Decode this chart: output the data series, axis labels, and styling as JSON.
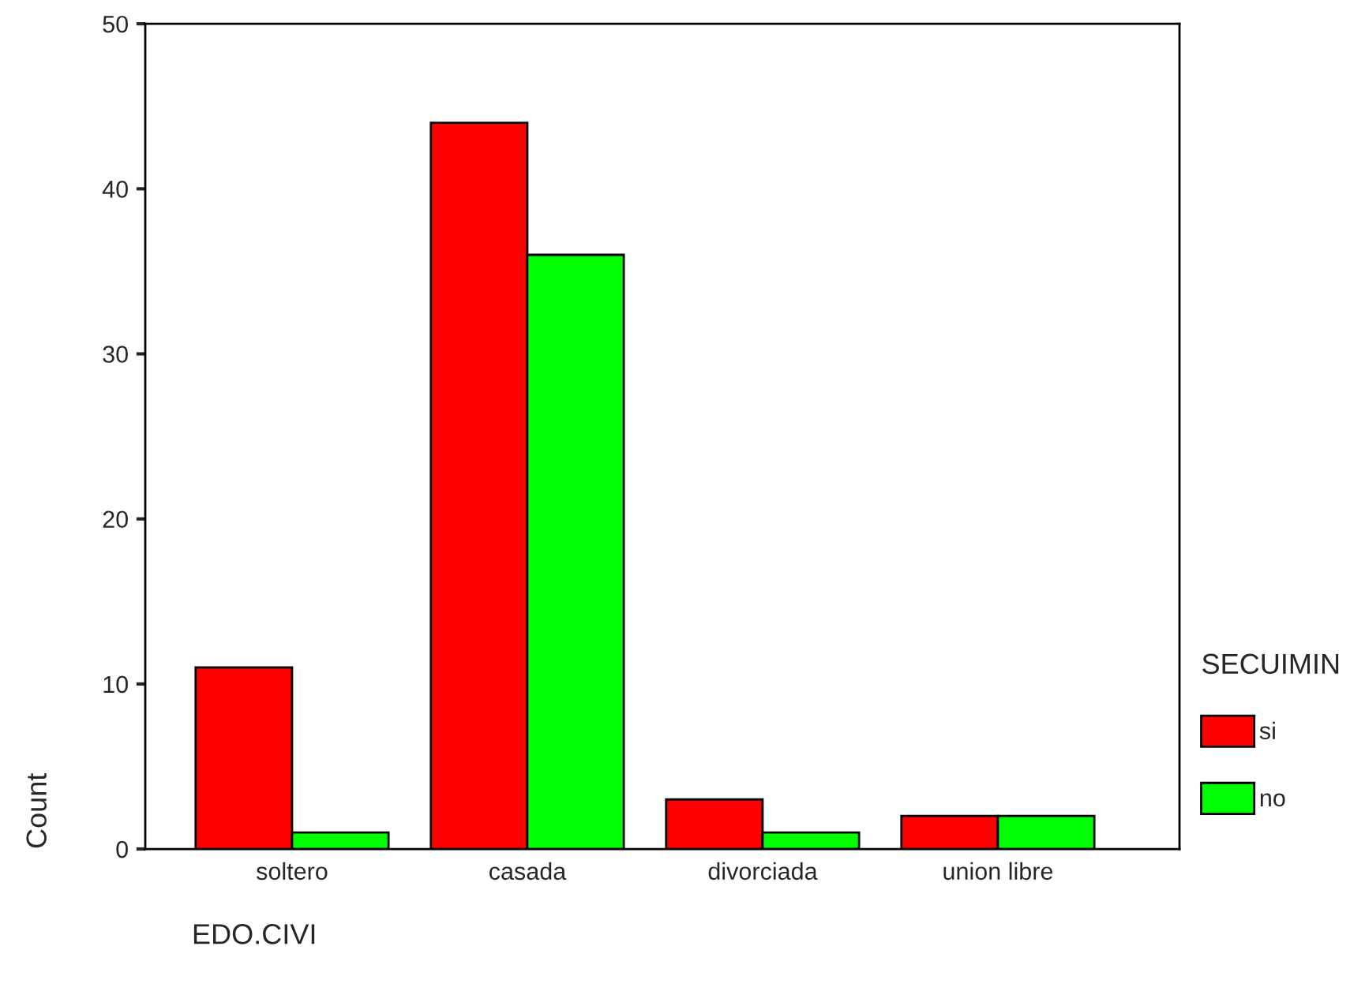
{
  "chart_data": {
    "type": "bar",
    "xlabel": "EDO.CIVI",
    "ylabel": "Count",
    "legend_title": "SECUIMIN",
    "categories": [
      "soltero",
      "casada",
      "divorciada",
      "union libre"
    ],
    "series": [
      {
        "name": "si",
        "color": "#ff0000",
        "values": [
          11,
          44,
          3,
          2
        ]
      },
      {
        "name": "no",
        "color": "#00ff00",
        "values": [
          1,
          36,
          1,
          2
        ]
      }
    ],
    "ylim": [
      0,
      50
    ],
    "yticks": [
      0,
      10,
      20,
      30,
      40,
      50
    ],
    "grid": false,
    "legend": "right"
  }
}
